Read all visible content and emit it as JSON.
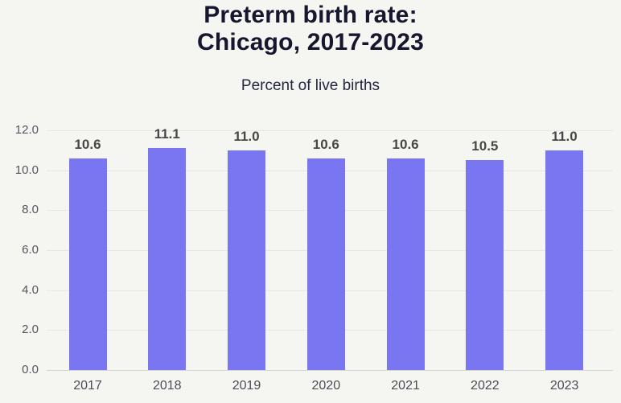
{
  "header": {
    "title_line1": "Preterm birth rate:",
    "title_line2": "Chicago, 2017-2023",
    "subtitle": "Percent of live births"
  },
  "chart_data": {
    "type": "bar",
    "title": "Preterm birth rate: Chicago, 2017-2023",
    "subtitle": "Percent of live births",
    "categories": [
      "2017",
      "2018",
      "2019",
      "2020",
      "2021",
      "2022",
      "2023"
    ],
    "values": [
      10.6,
      11.1,
      11.0,
      10.6,
      10.6,
      10.5,
      11.0
    ],
    "value_labels": [
      "10.6",
      "11.1",
      "11.0",
      "10.6",
      "10.6",
      "10.5",
      "11.0"
    ],
    "xlabel": "",
    "ylabel": "",
    "ylim": [
      0,
      12
    ],
    "ytick_interval": 2,
    "ytick_labels": [
      "0.0",
      "2.0",
      "4.0",
      "6.0",
      "8.0",
      "10.0",
      "12.0"
    ],
    "grid": true,
    "legend": false,
    "colors": {
      "bar": "#7a76f1",
      "background": "#f5f5f2",
      "title_text": "#16172e",
      "subtitle_text": "#232741",
      "value_label": "#474747",
      "axis_tick_label": "#55555e",
      "gridline": "#e7e7e2",
      "baseline": "#d4d4d0"
    }
  }
}
